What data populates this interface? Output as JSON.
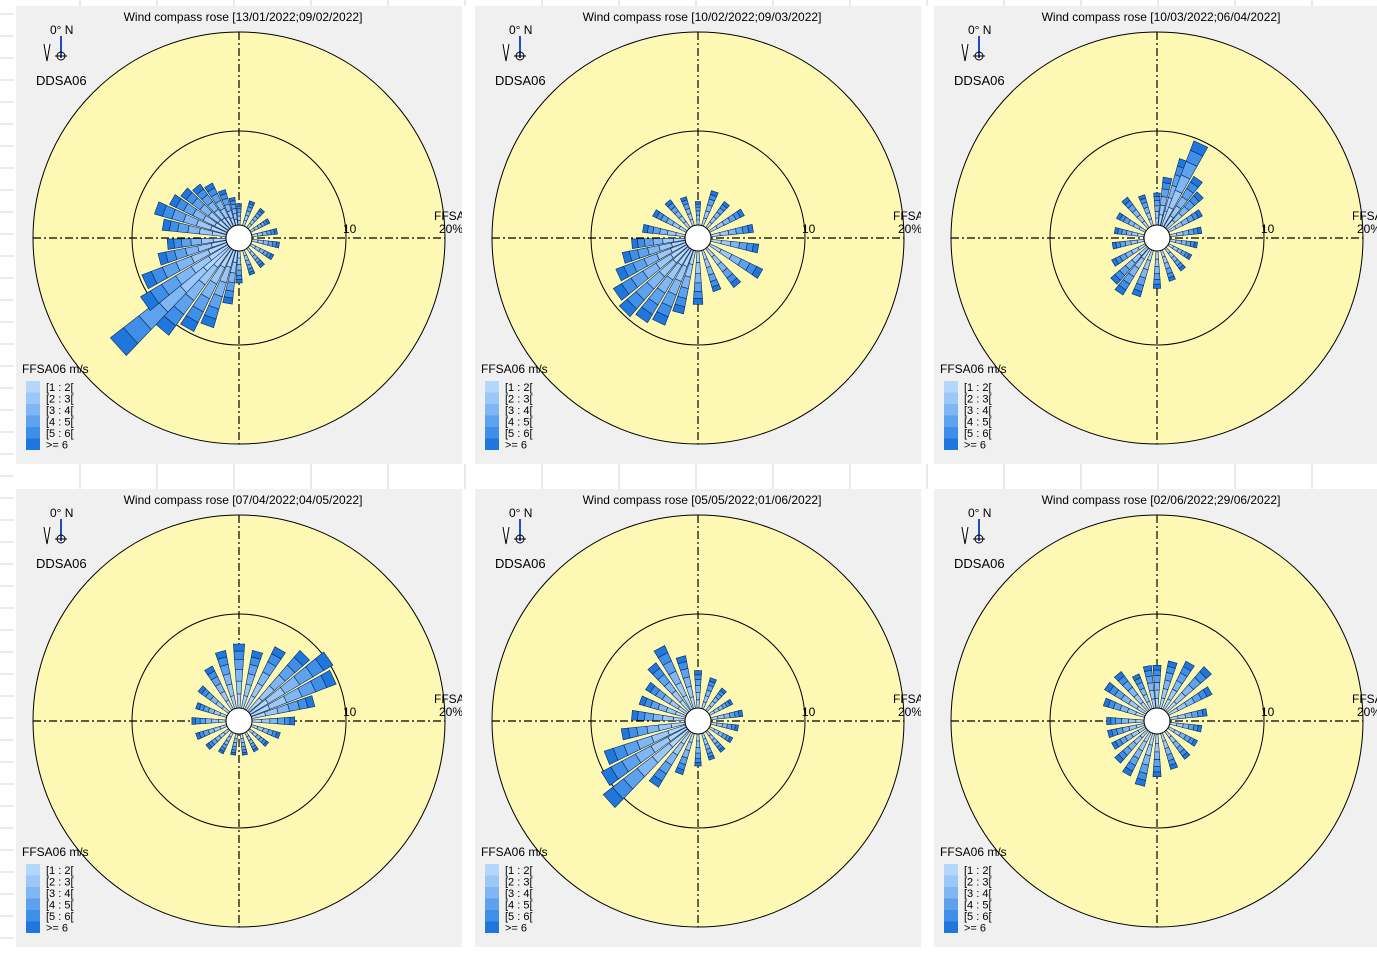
{
  "colors": {
    "panel_bg": "#f0f0f0",
    "disk_fill": "#fdf9b5",
    "ring_stroke": "#000000",
    "bar_stroke": "#0a2a55",
    "speed_classes": [
      "#b5d6fb",
      "#9cc8f8",
      "#7fb6f3",
      "#5ea2ee",
      "#3f8ee8",
      "#1f77de"
    ]
  },
  "panels": [
    {
      "title": "Wind compass rose [13/01/2022;09/02/2022]",
      "north_label": "0° N",
      "direction_var": "DDSA06",
      "speed_var": "FFSA06",
      "ring_label": "10",
      "pct_label": "20%",
      "legend_title": "FFSA06 m/s",
      "legend": [
        "[1 : 2[",
        "[2 : 3[",
        "[3 : 4[",
        "[4 : 5[",
        "[5 : 6[",
        ">= 6"
      ],
      "chart_data": {
        "type": "windrose",
        "radial_axis": {
          "ticks": [
            10,
            20
          ],
          "unit": "%"
        },
        "sectors": [
          {
            "dir": 0,
            "pct": 2.0
          },
          {
            "dir": 20,
            "pct": 2.4
          },
          {
            "dir": 40,
            "pct": 2.2
          },
          {
            "dir": 60,
            "pct": 2.0
          },
          {
            "dir": 80,
            "pct": 2.4
          },
          {
            "dir": 100,
            "pct": 2.6
          },
          {
            "dir": 120,
            "pct": 2.4
          },
          {
            "dir": 140,
            "pct": 2.2
          },
          {
            "dir": 160,
            "pct": 2.4
          },
          {
            "dir": 180,
            "pct": 3.0
          },
          {
            "dir": 190,
            "pct": 5.0
          },
          {
            "dir": 200,
            "pct": 7.5
          },
          {
            "dir": 210,
            "pct": 8.5
          },
          {
            "dir": 220,
            "pct": 10.0
          },
          {
            "dir": 228,
            "pct": 14.0
          },
          {
            "dir": 235,
            "pct": 9.5
          },
          {
            "dir": 245,
            "pct": 8.5
          },
          {
            "dir": 255,
            "pct": 6.5
          },
          {
            "dir": 265,
            "pct": 5.5
          },
          {
            "dir": 280,
            "pct": 6.0
          },
          {
            "dir": 290,
            "pct": 7.0
          },
          {
            "dir": 300,
            "pct": 6.0
          },
          {
            "dir": 310,
            "pct": 5.5
          },
          {
            "dir": 320,
            "pct": 5.0
          },
          {
            "dir": 330,
            "pct": 4.5
          },
          {
            "dir": 340,
            "pct": 3.5
          },
          {
            "dir": 350,
            "pct": 2.6
          }
        ]
      }
    },
    {
      "title": "Wind compass rose [10/02/2022;09/03/2022]",
      "north_label": "0° N",
      "direction_var": "DDSA06",
      "speed_var": "FFSA06",
      "ring_label": "10",
      "pct_label": "20%",
      "legend_title": "FFSA06 m/s",
      "legend": [
        "[1 : 2[",
        "[2 : 3[",
        "[3 : 4[",
        "[4 : 5[",
        "[5 : 6[",
        ">= 6"
      ],
      "chart_data": {
        "type": "windrose",
        "radial_axis": {
          "ticks": [
            10,
            20
          ],
          "unit": "%"
        },
        "sectors": [
          {
            "dir": 0,
            "pct": 2.2
          },
          {
            "dir": 20,
            "pct": 3.4
          },
          {
            "dir": 40,
            "pct": 3.0
          },
          {
            "dir": 60,
            "pct": 3.6
          },
          {
            "dir": 80,
            "pct": 4.0
          },
          {
            "dir": 100,
            "pct": 4.5
          },
          {
            "dir": 120,
            "pct": 5.5
          },
          {
            "dir": 140,
            "pct": 4.5
          },
          {
            "dir": 160,
            "pct": 4.0
          },
          {
            "dir": 180,
            "pct": 5.0
          },
          {
            "dir": 195,
            "pct": 6.0
          },
          {
            "dir": 205,
            "pct": 7.5
          },
          {
            "dir": 215,
            "pct": 8.0
          },
          {
            "dir": 225,
            "pct": 8.5
          },
          {
            "dir": 235,
            "pct": 8.0
          },
          {
            "dir": 245,
            "pct": 7.0
          },
          {
            "dir": 255,
            "pct": 6.0
          },
          {
            "dir": 265,
            "pct": 5.0
          },
          {
            "dir": 280,
            "pct": 4.0
          },
          {
            "dir": 300,
            "pct": 3.5
          },
          {
            "dir": 320,
            "pct": 3.2
          },
          {
            "dir": 340,
            "pct": 2.8
          }
        ]
      }
    },
    {
      "title": "Wind compass rose [10/03/2022;06/04/2022]",
      "north_label": "0° N",
      "direction_var": "DDSA06",
      "speed_var": "FFSA06",
      "ring_label": "10",
      "pct_label": "20%",
      "legend_title": "FFSA06 m/s",
      "legend": [
        "[1 : 2[",
        "[2 : 3[",
        "[3 : 4[",
        "[4 : 5[",
        "[5 : 6[",
        ">= 6"
      ],
      "chart_data": {
        "type": "windrose",
        "radial_axis": {
          "ticks": [
            10,
            20
          ],
          "unit": "%"
        },
        "sectors": [
          {
            "dir": 0,
            "pct": 3.0
          },
          {
            "dir": 10,
            "pct": 4.5
          },
          {
            "dir": 20,
            "pct": 6.5
          },
          {
            "dir": 25,
            "pct": 8.5
          },
          {
            "dir": 35,
            "pct": 5.5
          },
          {
            "dir": 45,
            "pct": 4.5
          },
          {
            "dir": 60,
            "pct": 3.5
          },
          {
            "dir": 80,
            "pct": 3.0
          },
          {
            "dir": 100,
            "pct": 2.6
          },
          {
            "dir": 120,
            "pct": 2.4
          },
          {
            "dir": 140,
            "pct": 2.6
          },
          {
            "dir": 160,
            "pct": 3.0
          },
          {
            "dir": 180,
            "pct": 3.5
          },
          {
            "dir": 200,
            "pct": 4.5
          },
          {
            "dir": 215,
            "pct": 5.0
          },
          {
            "dir": 225,
            "pct": 4.5
          },
          {
            "dir": 240,
            "pct": 3.5
          },
          {
            "dir": 260,
            "pct": 3.0
          },
          {
            "dir": 280,
            "pct": 2.8
          },
          {
            "dir": 300,
            "pct": 3.0
          },
          {
            "dir": 320,
            "pct": 3.5
          },
          {
            "dir": 340,
            "pct": 3.0
          }
        ]
      }
    },
    {
      "title": "Wind compass rose [07/04/2022;04/05/2022]",
      "north_label": "0° N",
      "direction_var": "DDSA06",
      "speed_var": "FFSA06",
      "ring_label": "10",
      "pct_label": "20%",
      "legend_title": "FFSA06 m/s",
      "legend": [
        "[1 : 2[",
        "[2 : 3[",
        "[3 : 4[",
        "[4 : 5[",
        "[5 : 6[",
        ">= 6"
      ],
      "chart_data": {
        "type": "windrose",
        "radial_axis": {
          "ticks": [
            10,
            20
          ],
          "unit": "%"
        },
        "sectors": [
          {
            "dir": 0,
            "pct": 6.0
          },
          {
            "dir": 15,
            "pct": 5.5
          },
          {
            "dir": 30,
            "pct": 6.5
          },
          {
            "dir": 45,
            "pct": 7.5
          },
          {
            "dir": 55,
            "pct": 9.0
          },
          {
            "dir": 65,
            "pct": 8.5
          },
          {
            "dir": 75,
            "pct": 6.0
          },
          {
            "dir": 90,
            "pct": 4.0
          },
          {
            "dir": 110,
            "pct": 2.8
          },
          {
            "dir": 130,
            "pct": 2.2
          },
          {
            "dir": 150,
            "pct": 2.0
          },
          {
            "dir": 170,
            "pct": 2.0
          },
          {
            "dir": 190,
            "pct": 2.0
          },
          {
            "dir": 210,
            "pct": 2.2
          },
          {
            "dir": 230,
            "pct": 2.6
          },
          {
            "dir": 250,
            "pct": 3.0
          },
          {
            "dir": 270,
            "pct": 3.2
          },
          {
            "dir": 290,
            "pct": 3.0
          },
          {
            "dir": 310,
            "pct": 3.5
          },
          {
            "dir": 330,
            "pct": 4.5
          },
          {
            "dir": 345,
            "pct": 5.5
          }
        ]
      }
    },
    {
      "title": "Wind compass rose [05/05/2022;01/06/2022]",
      "north_label": "0° N",
      "direction_var": "DDSA06",
      "speed_var": "FFSA06",
      "ring_label": "10",
      "pct_label": "20%",
      "legend_title": "FFSA06 m/s",
      "legend": [
        "[1 : 2[",
        "[2 : 3[",
        "[3 : 4[",
        "[4 : 5[",
        "[5 : 6[",
        ">= 6"
      ],
      "chart_data": {
        "type": "windrose",
        "radial_axis": {
          "ticks": [
            10,
            20
          ],
          "unit": "%"
        },
        "sectors": [
          {
            "dir": 0,
            "pct": 3.5
          },
          {
            "dir": 20,
            "pct": 3.0
          },
          {
            "dir": 40,
            "pct": 2.6
          },
          {
            "dir": 60,
            "pct": 2.4
          },
          {
            "dir": 80,
            "pct": 3.0
          },
          {
            "dir": 100,
            "pct": 2.6
          },
          {
            "dir": 120,
            "pct": 2.4
          },
          {
            "dir": 140,
            "pct": 2.4
          },
          {
            "dir": 160,
            "pct": 2.6
          },
          {
            "dir": 180,
            "pct": 3.0
          },
          {
            "dir": 200,
            "pct": 4.0
          },
          {
            "dir": 215,
            "pct": 6.0
          },
          {
            "dir": 228,
            "pct": 10.0
          },
          {
            "dir": 238,
            "pct": 9.0
          },
          {
            "dir": 248,
            "pct": 8.0
          },
          {
            "dir": 260,
            "pct": 6.0
          },
          {
            "dir": 275,
            "pct": 5.0
          },
          {
            "dir": 290,
            "pct": 4.5
          },
          {
            "dir": 305,
            "pct": 4.5
          },
          {
            "dir": 320,
            "pct": 5.5
          },
          {
            "dir": 332,
            "pct": 6.5
          },
          {
            "dir": 345,
            "pct": 5.0
          }
        ]
      }
    },
    {
      "title": "Wind compass rose [02/06/2022;29/06/2022]",
      "north_label": "0° N",
      "direction_var": "DDSA06",
      "speed_var": "FFSA06",
      "ring_label": "10",
      "pct_label": "20%",
      "legend_title": "FFSA06 m/s",
      "legend": [
        "[1 : 2[",
        "[2 : 3[",
        "[3 : 4[",
        "[4 : 5[",
        "[5 : 6[",
        ">= 6"
      ],
      "chart_data": {
        "type": "windrose",
        "radial_axis": {
          "ticks": [
            10,
            20
          ],
          "unit": "%"
        },
        "sectors": [
          {
            "dir": 0,
            "pct": 4.0
          },
          {
            "dir": 15,
            "pct": 4.5
          },
          {
            "dir": 30,
            "pct": 5.0
          },
          {
            "dir": 45,
            "pct": 5.5
          },
          {
            "dir": 60,
            "pct": 4.5
          },
          {
            "dir": 80,
            "pct": 3.5
          },
          {
            "dir": 100,
            "pct": 3.0
          },
          {
            "dir": 120,
            "pct": 3.0
          },
          {
            "dir": 140,
            "pct": 3.2
          },
          {
            "dir": 160,
            "pct": 3.5
          },
          {
            "dir": 180,
            "pct": 4.0
          },
          {
            "dir": 195,
            "pct": 5.0
          },
          {
            "dir": 210,
            "pct": 4.5
          },
          {
            "dir": 225,
            "pct": 4.0
          },
          {
            "dir": 240,
            "pct": 3.5
          },
          {
            "dir": 255,
            "pct": 3.5
          },
          {
            "dir": 270,
            "pct": 3.5
          },
          {
            "dir": 290,
            "pct": 4.0
          },
          {
            "dir": 305,
            "pct": 4.5
          },
          {
            "dir": 320,
            "pct": 4.5
          },
          {
            "dir": 335,
            "pct": 3.5
          },
          {
            "dir": 350,
            "pct": 4.0
          }
        ]
      }
    }
  ]
}
